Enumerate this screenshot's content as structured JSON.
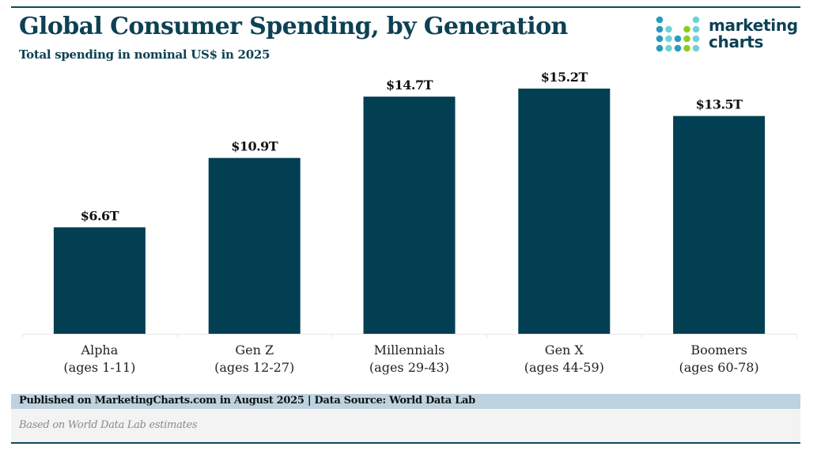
{
  "header": {
    "title": "Global Consumer Spending, by Generation",
    "subtitle": "Total spending in nominal US$ in 2025"
  },
  "logo": {
    "line1": "marketing",
    "line2": "charts",
    "dot_colors": {
      "blue": "#2a9ac0",
      "teal": "#6fd3d6",
      "green": "#8dcc1f"
    }
  },
  "colors": {
    "bar": "#023f53",
    "title": "#0d4154",
    "footer_band": "#bed3df",
    "note_band": "#f3f3f3"
  },
  "chart_data": {
    "type": "bar",
    "title": "Global Consumer Spending, by Generation",
    "subtitle": "Total spending in nominal US$ in 2025",
    "xlabel": "",
    "ylabel": "",
    "unit": "US$ trillions",
    "ylim": [
      0,
      15.2
    ],
    "grid": false,
    "legend": "none",
    "categories": [
      {
        "name": "Alpha",
        "sub": "(ages 1-11)"
      },
      {
        "name": "Gen Z",
        "sub": "(ages 12-27)"
      },
      {
        "name": "Millennials",
        "sub": "(ages 29-43)"
      },
      {
        "name": "Gen X",
        "sub": "(ages 44-59)"
      },
      {
        "name": "Boomers",
        "sub": "(ages 60-78)"
      }
    ],
    "values": [
      6.6,
      10.9,
      14.7,
      15.2,
      13.5
    ],
    "data_labels": [
      "$6.6T",
      "$10.9T",
      "$14.7T",
      "$15.2T",
      "$13.5T"
    ]
  },
  "footer": {
    "published": "Published on MarketingCharts.com in August 2025 | Data Source: World Data Lab",
    "note": "Based on World Data Lab estimates"
  }
}
